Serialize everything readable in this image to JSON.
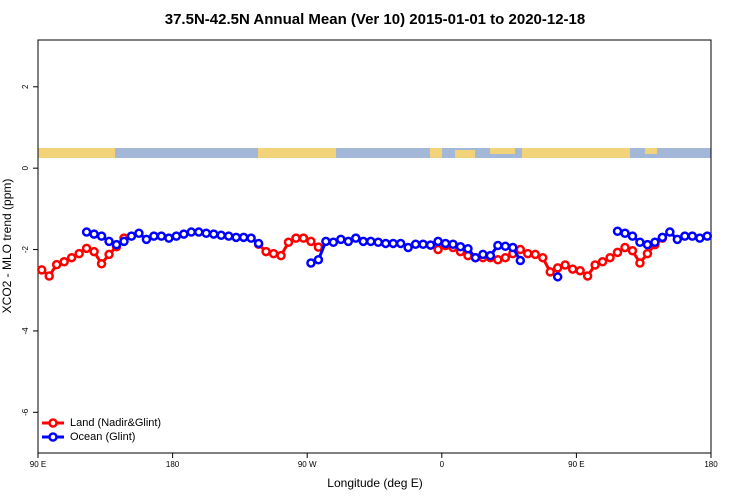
{
  "chart_data": {
    "type": "line",
    "title": "37.5N-42.5N Annual Mean (Ver 10)   2015-01-01 to 2020-12-18",
    "xlabel": "Longitude (deg E)",
    "ylabel": "XCO2 - MLO trend (ppm)",
    "xlim": [
      90,
      540
    ],
    "ylim": [
      -7,
      3.15
    ],
    "xticks": [
      {
        "value": 90,
        "label": "90 E"
      },
      180,
      {
        "value": 270,
        "label": "90 W"
      },
      {
        "value": 360,
        "label": "0"
      },
      {
        "value": 450,
        "label": "90 E"
      },
      {
        "value": 540,
        "label": "180"
      }
    ],
    "yticks": [
      -6,
      -4,
      -2,
      0,
      2
    ],
    "legend": "bottom-left",
    "series": [
      {
        "name": "Land (Nadir&Glint)",
        "color": "#ff0000",
        "x": [
          92.5,
          97.5,
          102.5,
          107.5,
          112.5,
          117.5,
          122.5,
          127.5,
          132.5,
          137.5,
          142.5,
          147.5,
          null,
          237.5,
          242.5,
          247.5,
          252.5,
          257.5,
          262.5,
          267.5,
          272.5,
          277.5,
          null,
          352.5,
          357.5,
          362.5,
          367.5,
          372.5,
          377.5,
          382.5,
          387.5,
          392.5,
          397.5,
          402.5,
          407.5,
          412.5,
          417.5,
          422.5,
          427.5,
          432.5,
          437.5,
          442.5,
          447.5,
          452.5,
          457.5,
          462.5,
          467.5,
          472.5,
          477.5,
          482.5,
          487.5,
          492.5,
          497.5,
          502.5,
          507.5
        ],
        "values": [
          -2.5,
          -2.65,
          -2.37,
          -2.3,
          -2.2,
          -2.1,
          -1.97,
          -2.05,
          -2.35,
          -2.12,
          -1.93,
          -1.72,
          null,
          -1.87,
          -2.05,
          -2.1,
          -2.15,
          -1.82,
          -1.72,
          -1.72,
          -1.8,
          -1.94,
          null,
          -1.89,
          -2.0,
          -1.9,
          -1.95,
          -2.05,
          -2.15,
          -2.2,
          -2.2,
          -2.2,
          -2.25,
          -2.2,
          -2.1,
          -2.0,
          -2.1,
          -2.12,
          -2.2,
          -2.55,
          -2.45,
          -2.38,
          -2.48,
          -2.52,
          -2.65,
          -2.38,
          -2.3,
          -2.2,
          -2.07,
          -1.95,
          -2.03,
          -2.33,
          -2.1,
          -1.88,
          -1.72
        ]
      },
      {
        "name": "Ocean (Glint)",
        "color": "#0000ff",
        "x": [
          122.5,
          127.5,
          132.5,
          137.5,
          142.5,
          147.5,
          152.5,
          157.5,
          162.5,
          167.5,
          172.5,
          177.5,
          182.5,
          187.5,
          192.5,
          197.5,
          202.5,
          207.5,
          212.5,
          217.5,
          222.5,
          227.5,
          232.5,
          237.5,
          null,
          272.5,
          277.5,
          282.5,
          287.5,
          292.5,
          297.5,
          302.5,
          307.5,
          312.5,
          317.5,
          322.5,
          327.5,
          332.5,
          337.5,
          342.5,
          347.5,
          352.5,
          357.5,
          362.5,
          367.5,
          372.5,
          377.5,
          382.5,
          387.5,
          392.5,
          397.5,
          402.5,
          407.5,
          412.5,
          null,
          437.5,
          null,
          477.5,
          482.5,
          487.5,
          492.5,
          497.5,
          502.5,
          507.5,
          512.5,
          517.5,
          522.5,
          527.5,
          532.5,
          537.5
        ],
        "values": [
          -1.57,
          -1.62,
          -1.67,
          -1.8,
          -1.88,
          -1.8,
          -1.67,
          -1.6,
          -1.75,
          -1.67,
          -1.67,
          -1.72,
          -1.67,
          -1.62,
          -1.57,
          -1.57,
          -1.6,
          -1.62,
          -1.65,
          -1.67,
          -1.7,
          -1.7,
          -1.72,
          -1.85,
          null,
          -2.33,
          -2.25,
          -1.8,
          -1.82,
          -1.75,
          -1.8,
          -1.72,
          -1.8,
          -1.8,
          -1.82,
          -1.85,
          -1.85,
          -1.85,
          -1.95,
          -1.87,
          -1.87,
          -1.89,
          -1.8,
          -1.85,
          -1.87,
          -1.93,
          -1.98,
          -2.2,
          -2.12,
          -2.15,
          -1.9,
          -1.92,
          -1.95,
          -2.27,
          null,
          -2.67,
          null,
          -1.55,
          -1.6,
          -1.67,
          -1.82,
          -1.88,
          -1.82,
          -1.7,
          -1.57,
          -1.75,
          -1.67,
          -1.67,
          -1.72,
          -1.67
        ]
      }
    ]
  }
}
